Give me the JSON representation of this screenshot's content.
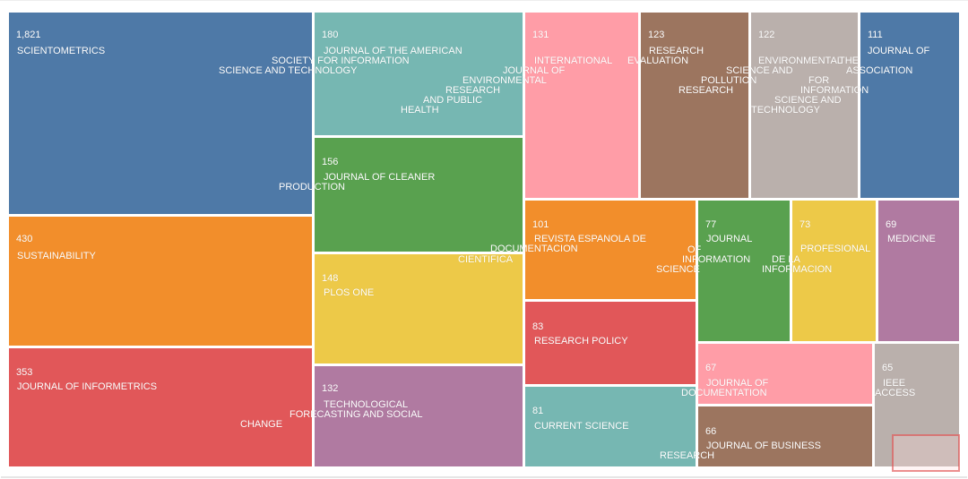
{
  "chart_data": {
    "type": "treemap",
    "title": "",
    "items": [
      {
        "value": 1821,
        "value_label": "1,821",
        "lines": [
          "SCIENTOMETRICS"
        ],
        "color": "#4e79a7"
      },
      {
        "value": 430,
        "value_label": "430",
        "lines": [
          "SUSTAINABILITY"
        ],
        "color": "#f28e2b"
      },
      {
        "value": 353,
        "value_label": "353",
        "lines": [
          "JOURNAL OF INFORMETRICS"
        ],
        "color": "#e15759"
      },
      {
        "value": 180,
        "value_label": "180",
        "lines": [
          "JOURNAL OF THE AMERICAN",
          "SOCIETY FOR INFORMATION",
          "SCIENCE AND TECHNOLOGY"
        ],
        "color": "#76b7b2"
      },
      {
        "value": 156,
        "value_label": "156",
        "lines": [
          "JOURNAL OF CLEANER",
          "PRODUCTION"
        ],
        "color": "#59a14f"
      },
      {
        "value": 148,
        "value_label": "148",
        "lines": [
          "PLOS ONE"
        ],
        "color": "#edc948"
      },
      {
        "value": 132,
        "value_label": "132",
        "lines": [
          "TECHNOLOGICAL",
          "FORECASTING AND SOCIAL",
          "CHANGE"
        ],
        "color": "#b07aa1"
      },
      {
        "value": 131,
        "value_label": "131",
        "lines": [
          "INTERNATIONAL",
          "JOURNAL OF",
          "ENVIRONMENTAL",
          "RESEARCH",
          "AND PUBLIC",
          "HEALTH"
        ],
        "color": "#ff9da7"
      },
      {
        "value": 123,
        "value_label": "123",
        "lines": [
          "RESEARCH",
          "EVALUATION"
        ],
        "color": "#9c755f"
      },
      {
        "value": 122,
        "value_label": "122",
        "lines": [
          "ENVIRONMENTAL",
          "SCIENCE AND",
          "POLLUTION",
          "RESEARCH"
        ],
        "color": "#bab0ac"
      },
      {
        "value": 111,
        "value_label": "111",
        "lines": [
          "JOURNAL OF",
          "THE",
          "ASSOCIATION",
          "FOR",
          "INFORMATION",
          "SCIENCE AND",
          "TECHNOLOGY"
        ],
        "color": "#4e79a7"
      },
      {
        "value": 101,
        "value_label": "101",
        "lines": [
          "REVISTA ESPANOLA DE",
          "DOCUMENTACION",
          "CIENTIFICA"
        ],
        "color": "#f28e2b"
      },
      {
        "value": 83,
        "value_label": "83",
        "lines": [
          "RESEARCH POLICY"
        ],
        "color": "#e15759"
      },
      {
        "value": 81,
        "value_label": "81",
        "lines": [
          "CURRENT SCIENCE"
        ],
        "color": "#76b7b2"
      },
      {
        "value": 77,
        "value_label": "77",
        "lines": [
          "JOURNAL",
          "OF",
          "INFORMATION",
          "SCIENCE"
        ],
        "color": "#59a14f"
      },
      {
        "value": 73,
        "value_label": "73",
        "lines": [
          "PROFESIONAL",
          "DE LA",
          "INFORMACION"
        ],
        "color": "#edc948"
      },
      {
        "value": 69,
        "value_label": "69",
        "lines": [
          "MEDICINE"
        ],
        "color": "#b07aa1"
      },
      {
        "value": 67,
        "value_label": "67",
        "lines": [
          "JOURNAL OF",
          "DOCUMENTATION"
        ],
        "color": "#ff9da7"
      },
      {
        "value": 66,
        "value_label": "66",
        "lines": [
          "JOURNAL OF BUSINESS",
          "RESEARCH"
        ],
        "color": "#9c755f"
      },
      {
        "value": 65,
        "value_label": "65",
        "lines": [
          "IEEE",
          "ACCESS"
        ],
        "color": "#bab0ac"
      }
    ]
  }
}
